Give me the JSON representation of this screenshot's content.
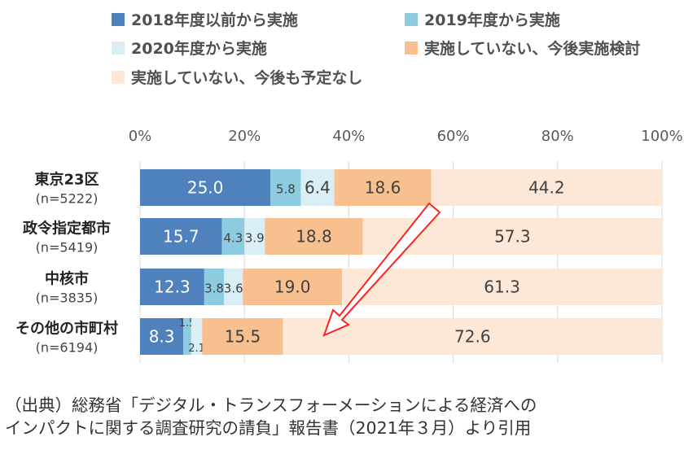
{
  "colors": {
    "s2018": "#4f81bd",
    "s2019": "#8ccbe0",
    "s2020": "#daeef5",
    "consider": "#f8c08e",
    "none": "#fde8d7",
    "arrow": "#ff2020"
  },
  "source_text": [
    "（出典）総務省「デジタル・トランスフォーメーションによる経済への",
    "インパクトに関する調査研究の請負」報告書（2021年３月）より引用"
  ],
  "chart_data": {
    "type": "bar",
    "orientation": "horizontal",
    "stacked": true,
    "xlim": [
      0,
      100
    ],
    "ticks": [
      "0%",
      "20%",
      "40%",
      "60%",
      "80%",
      "100%"
    ],
    "grid": true,
    "legend_position": "top",
    "categories": [
      {
        "name": "東京23区",
        "n": "(n=5222)"
      },
      {
        "name": "政令指定都市",
        "n": "(n=5419)"
      },
      {
        "name": "中核市",
        "n": "(n=3835)"
      },
      {
        "name": "その他の市町村",
        "n": "(n=6194)"
      }
    ],
    "series": [
      {
        "name": "2018年度以前から実施",
        "color_key": "s2018",
        "values": [
          25.0,
          15.7,
          12.3,
          8.3
        ]
      },
      {
        "name": "2019年度から実施",
        "color_key": "s2019",
        "values": [
          5.8,
          4.3,
          3.8,
          1.5
        ]
      },
      {
        "name": "2020年度から実施",
        "color_key": "s2020",
        "values": [
          6.4,
          3.9,
          3.6,
          2.1
        ]
      },
      {
        "name": "実施していない、今後実施検討",
        "color_key": "consider",
        "values": [
          18.6,
          18.8,
          19.0,
          15.5
        ]
      },
      {
        "name": "実施していない、今後も予定なし",
        "color_key": "none",
        "values": [
          44.2,
          57.3,
          61.3,
          72.6
        ]
      }
    ],
    "annotations": [
      "arrow from 東京23区 non-implementation boundary toward その他の市町村 bar"
    ]
  }
}
